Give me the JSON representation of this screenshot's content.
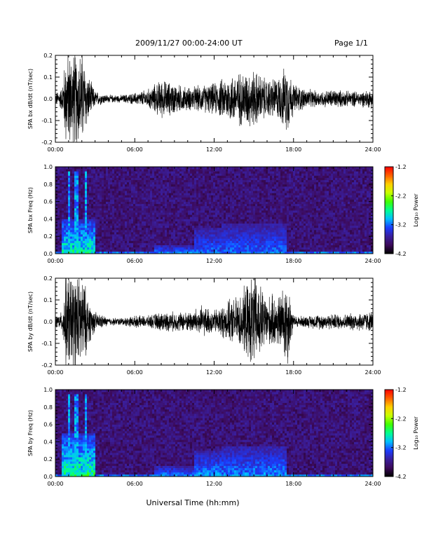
{
  "header": {
    "date_range": "2009/11/27  00:00-24:00 UT",
    "page": "Page 1/1"
  },
  "xlabel": "Universal Time (hh:mm)",
  "colors": {
    "trace": "#000000",
    "colormap": [
      "#000000",
      "#3c0a5a",
      "#3a1f9e",
      "#1a3cff",
      "#00c0ff",
      "#00ff90",
      "#40ff00",
      "#c8ff00",
      "#ffd000",
      "#ff6000",
      "#ff0000"
    ]
  },
  "chart_data": [
    {
      "type": "line",
      "ylabel": "SPA bx dB/dt (nT/sec)",
      "xlim": [
        0,
        24
      ],
      "ylim": [
        -0.2,
        0.2
      ],
      "xticks": [
        "00:00",
        "06:00",
        "12:00",
        "18:00",
        "24:00"
      ],
      "yticks": [
        "-0.2",
        "-0.1",
        "0.0",
        "0.1",
        "0.2"
      ],
      "amplitude_envelope": {
        "hours": [
          0,
          0.5,
          0.8,
          1.0,
          1.5,
          2.0,
          2.5,
          3.0,
          4,
          5,
          6,
          7,
          8,
          9,
          10,
          11,
          12,
          13,
          14,
          15,
          16,
          17,
          17.5,
          18,
          19,
          20,
          21,
          22,
          23,
          24
        ],
        "amp": [
          0.03,
          0.06,
          0.25,
          0.25,
          0.25,
          0.25,
          0.12,
          0.04,
          0.02,
          0.02,
          0.03,
          0.05,
          0.1,
          0.08,
          0.06,
          0.07,
          0.08,
          0.12,
          0.14,
          0.15,
          0.1,
          0.12,
          0.18,
          0.08,
          0.05,
          0.04,
          0.05,
          0.04,
          0.04,
          0.05
        ]
      }
    },
    {
      "type": "heatmap",
      "ylabel": "SPA bx Freq (Hz)",
      "xlim": [
        0,
        24
      ],
      "ylim": [
        0,
        1.0
      ],
      "xticks": [
        "00:00",
        "06:00",
        "12:00",
        "18:00",
        "24:00"
      ],
      "yticks": [
        "0.0",
        "0.2",
        "0.4",
        "0.6",
        "0.8",
        "1.0"
      ],
      "colorbar": {
        "label": "Log₁₀ Power",
        "range": [
          -4.2,
          -1.2
        ],
        "ticks": [
          "-1.2",
          "-2.2",
          "-3.2",
          "-4.2"
        ]
      },
      "activity_bands": [
        {
          "hours": [
            0.5,
            3.0
          ],
          "fmax": 0.4,
          "level": -2.6
        },
        {
          "hours": [
            7.5,
            11.0
          ],
          "fmax": 0.1,
          "level": -3.0
        },
        {
          "hours": [
            10.5,
            12.5
          ],
          "fmax": 0.3,
          "level": -3.1
        },
        {
          "hours": [
            12.5,
            17.5
          ],
          "fmax": 0.35,
          "level": -3.1
        }
      ]
    },
    {
      "type": "line",
      "ylabel": "SPA by dB/dt (nT/sec)",
      "xlim": [
        0,
        24
      ],
      "ylim": [
        -0.2,
        0.2
      ],
      "xticks": [
        "00:00",
        "06:00",
        "12:00",
        "18:00",
        "24:00"
      ],
      "yticks": [
        "-0.2",
        "-0.1",
        "0.0",
        "0.1",
        "0.2"
      ],
      "amplitude_envelope": {
        "hours": [
          0,
          0.5,
          0.8,
          1.0,
          1.5,
          2.0,
          2.5,
          3.0,
          4,
          5,
          6,
          7,
          8,
          9,
          10,
          11,
          12,
          13,
          14,
          15,
          16,
          17,
          17.5,
          18,
          19,
          20,
          21,
          22,
          23,
          24
        ],
        "amp": [
          0.03,
          0.05,
          0.25,
          0.25,
          0.25,
          0.25,
          0.12,
          0.05,
          0.02,
          0.02,
          0.03,
          0.03,
          0.05,
          0.05,
          0.05,
          0.08,
          0.06,
          0.1,
          0.14,
          0.25,
          0.13,
          0.14,
          0.25,
          0.03,
          0.03,
          0.04,
          0.04,
          0.04,
          0.05,
          0.05
        ]
      }
    },
    {
      "type": "heatmap",
      "ylabel": "SPA by Freq (Hz)",
      "xlim": [
        0,
        24
      ],
      "ylim": [
        0,
        1.0
      ],
      "xticks": [
        "00:00",
        "06:00",
        "12:00",
        "18:00",
        "24:00"
      ],
      "yticks": [
        "0.0",
        "0.2",
        "0.4",
        "0.6",
        "0.8",
        "1.0"
      ],
      "colorbar": {
        "label": "Log₁₀ Power",
        "range": [
          -4.2,
          -1.2
        ],
        "ticks": [
          "-1.2",
          "-2.2",
          "-3.2",
          "-4.2"
        ]
      },
      "activity_bands": [
        {
          "hours": [
            0.5,
            3.0
          ],
          "fmax": 0.5,
          "level": -2.5
        },
        {
          "hours": [
            7.5,
            11.0
          ],
          "fmax": 0.12,
          "level": -3.0
        },
        {
          "hours": [
            10.5,
            12.5
          ],
          "fmax": 0.3,
          "level": -3.0
        },
        {
          "hours": [
            12.5,
            17.5
          ],
          "fmax": 0.35,
          "level": -3.0
        }
      ]
    }
  ]
}
